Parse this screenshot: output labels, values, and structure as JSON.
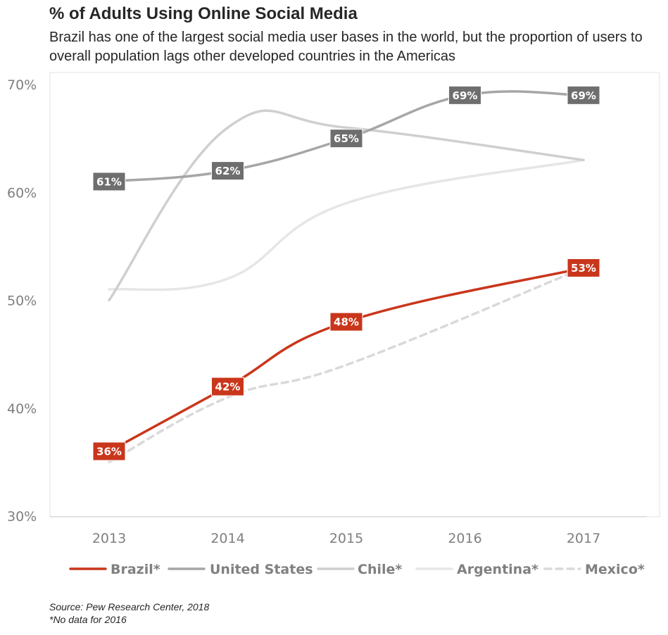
{
  "title": "% of Adults Using Online Social Media",
  "subtitle": "Brazil has one of the largest social media user bases in the world, but the proportion of users to overall population lags other developed countries in the Americas",
  "footnotes": [
    "Source: Pew Research Center, 2018",
    "*No data for 2016"
  ],
  "chart_data": {
    "type": "line",
    "title": "% of Adults Using Online Social Media",
    "categories": [
      "2013",
      "2014",
      "2015",
      "2016",
      "2017"
    ],
    "ylim": [
      30,
      70
    ],
    "yticks": [
      30,
      40,
      50,
      60,
      70
    ],
    "ytick_labels": [
      "30%",
      "40%",
      "50%",
      "60%",
      "70%"
    ],
    "grid": false,
    "legend_position": "bottom",
    "series": [
      {
        "name": "Mexico*",
        "color": "#d9d9d9",
        "dashed": true,
        "values": [
          35,
          41,
          44,
          null,
          53
        ],
        "labels": false
      },
      {
        "name": "Argentina*",
        "color": "#e6e6e6",
        "dashed": false,
        "values": [
          51,
          52,
          59,
          null,
          63
        ],
        "labels": false
      },
      {
        "name": "Chile*",
        "color": "#cfcfcf",
        "dashed": false,
        "values": [
          50,
          66,
          66,
          null,
          63
        ],
        "labels": false
      },
      {
        "name": "United States",
        "color": "#a6a6a6",
        "dashed": false,
        "values": [
          61,
          62,
          65,
          69,
          69
        ],
        "labels": true,
        "label_bg": "#6e6e6e"
      },
      {
        "name": "Brazil*",
        "color": "#c9361b",
        "dashed": false,
        "values": [
          36,
          42,
          48,
          null,
          53
        ],
        "labels": true,
        "label_bg": "#c9361b"
      }
    ],
    "legend_order": [
      "Brazil*",
      "United States",
      "Chile*",
      "Argentina*",
      "Mexico*"
    ]
  }
}
